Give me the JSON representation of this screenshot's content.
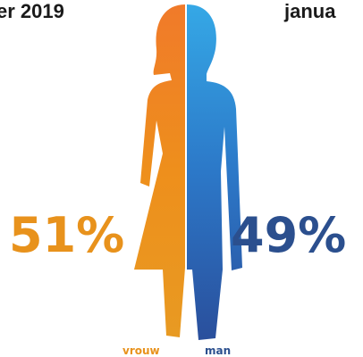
{
  "header": {
    "left": "er 2019",
    "right": "janua"
  },
  "figure": {
    "female_share": "51%",
    "male_share": "49%",
    "female_label": "vrouw",
    "male_label": "man"
  }
}
